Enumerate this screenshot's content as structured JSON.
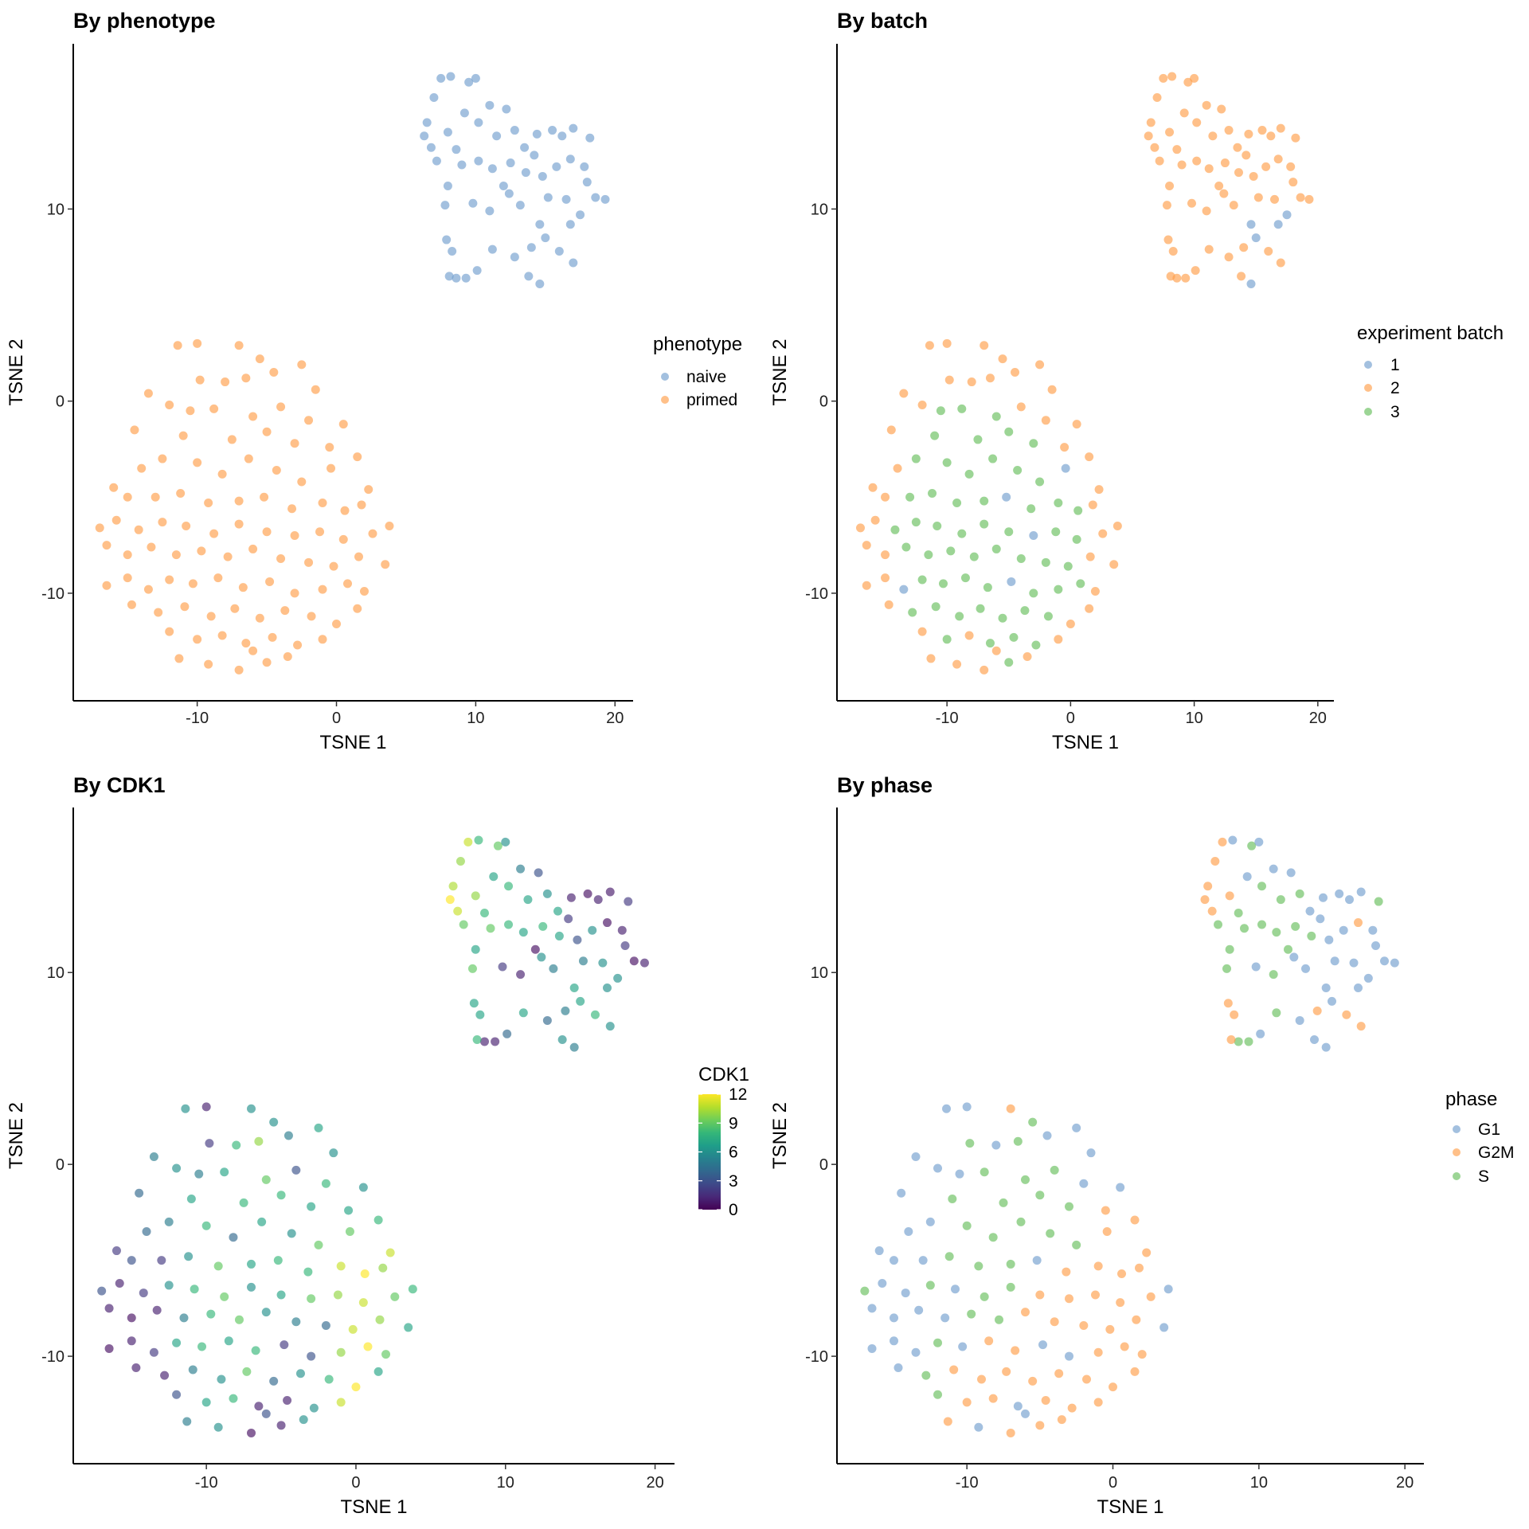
{
  "chart_data": [
    {
      "type": "scatter",
      "title": "By phenotype",
      "xlabel": "TSNE 1",
      "ylabel": "TSNE 2",
      "color_by": "phenotype",
      "legend": {
        "title": "phenotype",
        "position": "right",
        "items": [
          {
            "label": "naive",
            "color": "#729ECE"
          },
          {
            "label": "primed",
            "color": "#FF9E4A"
          }
        ]
      }
    },
    {
      "type": "scatter",
      "title": "By batch",
      "xlabel": "TSNE 1",
      "ylabel": "TSNE 2",
      "color_by": "batch",
      "legend": {
        "title": "experiment batch",
        "position": "right",
        "items": [
          {
            "label": "1",
            "color": "#729ECE"
          },
          {
            "label": "2",
            "color": "#FF9E4A"
          },
          {
            "label": "3",
            "color": "#67BF5C"
          }
        ]
      }
    },
    {
      "type": "scatter",
      "title": "By CDK1",
      "xlabel": "TSNE 1",
      "ylabel": "TSNE 2",
      "color_by": "cdk1",
      "legend": {
        "title": "CDK1",
        "position": "right",
        "colorscale": "viridis",
        "range": [
          0,
          12
        ],
        "ticks": [
          "12",
          "9",
          "6",
          "3",
          "0"
        ]
      }
    },
    {
      "type": "scatter",
      "title": "By phase",
      "xlabel": "TSNE 1",
      "ylabel": "TSNE 2",
      "color_by": "phase",
      "legend": {
        "title": "phase",
        "position": "right",
        "items": [
          {
            "label": "G1",
            "color": "#729ECE"
          },
          {
            "label": "G2M",
            "color": "#FF9E4A"
          },
          {
            "label": "S",
            "color": "#67BF5C"
          }
        ]
      }
    }
  ],
  "axes": {
    "xlim": [
      -18.9,
      21.3
    ],
    "ylim": [
      -15.6,
      18.6
    ],
    "xticks": [
      -10,
      0,
      10,
      20
    ],
    "yticks": [
      -10,
      0,
      10
    ],
    "grid": false
  },
  "point_fields": [
    "tsne1",
    "tsne2",
    "batch",
    "cdk1",
    "phase",
    "phenotype"
  ],
  "points": [
    [
      6.5,
      14.5,
      2,
      10.5,
      "G2M",
      "naive"
    ],
    [
      7.0,
      15.8,
      2,
      10,
      "G2M",
      "naive"
    ],
    [
      7.5,
      16.8,
      2,
      11,
      "G2M",
      "naive"
    ],
    [
      8.2,
      16.9,
      2,
      8,
      "G1",
      "naive"
    ],
    [
      9.5,
      16.6,
      2,
      9,
      "S",
      "naive"
    ],
    [
      10,
      16.8,
      2,
      6,
      "G1",
      "naive"
    ],
    [
      6.8,
      13.2,
      2,
      11,
      "G2M",
      "naive"
    ],
    [
      7.2,
      12.5,
      2,
      9,
      "S",
      "naive"
    ],
    [
      6.3,
      13.8,
      2,
      12,
      "G2M",
      "naive"
    ],
    [
      8,
      14,
      2,
      10,
      "G2M",
      "naive"
    ],
    [
      8.6,
      13.1,
      2,
      8,
      "S",
      "naive"
    ],
    [
      9.2,
      15,
      2,
      7,
      "G1",
      "naive"
    ],
    [
      10.2,
      14.5,
      2,
      8,
      "S",
      "naive"
    ],
    [
      11,
      15.4,
      2,
      5,
      "G1",
      "naive"
    ],
    [
      11.5,
      13.8,
      2,
      7,
      "S",
      "naive"
    ],
    [
      12.2,
      15.2,
      2,
      3,
      "G1",
      "naive"
    ],
    [
      12.8,
      14.1,
      2,
      6,
      "S",
      "naive"
    ],
    [
      13.5,
      13.2,
      2,
      7,
      "G1",
      "naive"
    ],
    [
      14.4,
      13.9,
      2,
      1,
      "G1",
      "naive"
    ],
    [
      15.5,
      14.1,
      2,
      0.5,
      "G1",
      "naive"
    ],
    [
      16.2,
      13.8,
      2,
      1,
      "G1",
      "naive"
    ],
    [
      17,
      14.2,
      2,
      0.8,
      "G1",
      "naive"
    ],
    [
      18.2,
      13.7,
      2,
      2,
      "S",
      "naive"
    ],
    [
      17.8,
      12.2,
      2,
      1,
      "G1",
      "naive"
    ],
    [
      16.8,
      12.6,
      2,
      0.5,
      "G2M",
      "naive"
    ],
    [
      15.8,
      12.2,
      2,
      6,
      "G1",
      "naive"
    ],
    [
      14.8,
      11.7,
      2,
      3,
      "G1",
      "naive"
    ],
    [
      13.6,
      11.9,
      2,
      7,
      "S",
      "naive"
    ],
    [
      12.5,
      12.4,
      2,
      8,
      "S",
      "naive"
    ],
    [
      11.2,
      12.1,
      2,
      7,
      "S",
      "naive"
    ],
    [
      10.2,
      12.5,
      2,
      8,
      "S",
      "naive"
    ],
    [
      9,
      12.3,
      2,
      9,
      "S",
      "naive"
    ],
    [
      8,
      11.2,
      2,
      7,
      "S",
      "naive"
    ],
    [
      7.8,
      10.2,
      2,
      9,
      "S",
      "naive"
    ],
    [
      9.8,
      10.3,
      2,
      2,
      "G1",
      "naive"
    ],
    [
      11,
      9.9,
      2,
      1,
      "S",
      "naive"
    ],
    [
      12.4,
      10.8,
      2,
      6,
      "G1",
      "naive"
    ],
    [
      13.2,
      10.2,
      2,
      5,
      "G1",
      "naive"
    ],
    [
      14.6,
      9.2,
      1,
      7,
      "G1",
      "naive"
    ],
    [
      15.2,
      10.6,
      2,
      5,
      "G1",
      "naive"
    ],
    [
      16.5,
      10.5,
      2,
      6,
      "G1",
      "naive"
    ],
    [
      17.5,
      9.7,
      1,
      6,
      "G1",
      "naive"
    ],
    [
      18.6,
      10.6,
      2,
      0.5,
      "G1",
      "naive"
    ],
    [
      19.3,
      10.5,
      2,
      1,
      "G1",
      "naive"
    ],
    [
      18,
      11.4,
      2,
      2,
      "G1",
      "naive"
    ],
    [
      15,
      8.5,
      1,
      7,
      "G1",
      "naive"
    ],
    [
      14,
      8,
      2,
      5,
      "G2M",
      "naive"
    ],
    [
      16,
      7.8,
      2,
      8,
      "G2M",
      "naive"
    ],
    [
      17,
      7.2,
      2,
      6,
      "G2M",
      "naive"
    ],
    [
      13.8,
      6.5,
      2,
      6,
      "G1",
      "naive"
    ],
    [
      14.6,
      6.1,
      1,
      5,
      "G1",
      "naive"
    ],
    [
      12.8,
      7.5,
      2,
      4,
      "G1",
      "naive"
    ],
    [
      11.2,
      7.9,
      2,
      7,
      "S",
      "naive"
    ],
    [
      10.1,
      6.8,
      2,
      4,
      "G1",
      "naive"
    ],
    [
      9.3,
      6.4,
      2,
      1,
      "S",
      "naive"
    ],
    [
      8.6,
      6.4,
      2,
      1,
      "S",
      "naive"
    ],
    [
      8.1,
      6.5,
      2,
      8,
      "G2M",
      "naive"
    ],
    [
      8.3,
      7.8,
      2,
      7,
      "G2M",
      "naive"
    ],
    [
      7.9,
      8.4,
      2,
      7,
      "G2M",
      "naive"
    ],
    [
      16.8,
      9.2,
      1,
      6,
      "G1",
      "naive"
    ],
    [
      14.2,
      12.8,
      2,
      2,
      "G1",
      "naive"
    ],
    [
      12,
      11.2,
      2,
      0.5,
      "S",
      "naive"
    ],
    [
      -11.4,
      2.9,
      2,
      6,
      "G1",
      "primed"
    ],
    [
      -10,
      3,
      2,
      1,
      "G1",
      "primed"
    ],
    [
      -7,
      2.9,
      2,
      6,
      "G2M",
      "primed"
    ],
    [
      -5.5,
      2.2,
      2,
      6,
      "S",
      "primed"
    ],
    [
      -4.5,
      1.5,
      2,
      5,
      "G1",
      "primed"
    ],
    [
      -2.5,
      1.9,
      2,
      7,
      "G1",
      "primed"
    ],
    [
      -13.5,
      0.4,
      2,
      5,
      "G1",
      "primed"
    ],
    [
      -9.8,
      1.1,
      2,
      2,
      "S",
      "primed"
    ],
    [
      -8,
      1,
      2,
      8,
      "G1",
      "primed"
    ],
    [
      -6.5,
      1.2,
      2,
      10,
      "S",
      "primed"
    ],
    [
      -1.5,
      0.6,
      2,
      6,
      "G1",
      "primed"
    ],
    [
      -12,
      -0.2,
      2,
      6,
      "G1",
      "primed"
    ],
    [
      -10.5,
      -0.5,
      3,
      5,
      "G1",
      "primed"
    ],
    [
      -8.8,
      -0.4,
      3,
      7,
      "S",
      "primed"
    ],
    [
      -6,
      -0.8,
      3,
      9,
      "S",
      "primed"
    ],
    [
      -4,
      -0.3,
      2,
      3,
      "S",
      "primed"
    ],
    [
      -2,
      -1,
      2,
      8,
      "G1",
      "primed"
    ],
    [
      0.5,
      -1.2,
      2,
      6,
      "G1",
      "primed"
    ],
    [
      -14.5,
      -1.5,
      2,
      4,
      "G1",
      "primed"
    ],
    [
      -11,
      -1.8,
      3,
      7,
      "S",
      "primed"
    ],
    [
      -7.5,
      -2,
      3,
      8,
      "S",
      "primed"
    ],
    [
      -5,
      -1.6,
      3,
      8,
      "S",
      "primed"
    ],
    [
      -3,
      -2.2,
      3,
      7,
      "S",
      "primed"
    ],
    [
      -0.5,
      -2.4,
      2,
      7,
      "G2M",
      "primed"
    ],
    [
      1.5,
      -2.9,
      2,
      8,
      "G2M",
      "primed"
    ],
    [
      -16,
      -4.5,
      2,
      2,
      "G1",
      "primed"
    ],
    [
      -14,
      -3.5,
      2,
      4,
      "G1",
      "primed"
    ],
    [
      -12.5,
      -3,
      3,
      5,
      "G1",
      "primed"
    ],
    [
      -10,
      -3.2,
      3,
      8,
      "S",
      "primed"
    ],
    [
      -8.2,
      -3.8,
      3,
      4,
      "S",
      "primed"
    ],
    [
      -6.3,
      -3,
      3,
      7,
      "S",
      "primed"
    ],
    [
      -4.3,
      -3.6,
      3,
      6,
      "S",
      "primed"
    ],
    [
      -2.5,
      -4.2,
      3,
      9,
      "S",
      "primed"
    ],
    [
      -0.4,
      -3.5,
      1,
      9,
      "G2M",
      "primed"
    ],
    [
      2.3,
      -4.6,
      2,
      11,
      "G2M",
      "primed"
    ],
    [
      -15,
      -5,
      2,
      3,
      "G1",
      "primed"
    ],
    [
      -13,
      -5,
      3,
      2,
      "G1",
      "primed"
    ],
    [
      -11.2,
      -4.8,
      3,
      6,
      "S",
      "primed"
    ],
    [
      -9.2,
      -5.3,
      3,
      9,
      "S",
      "primed"
    ],
    [
      -7,
      -5.2,
      3,
      7,
      "S",
      "primed"
    ],
    [
      -5.2,
      -5,
      1,
      8,
      "G1",
      "primed"
    ],
    [
      -3.2,
      -5.6,
      3,
      8,
      "G2M",
      "primed"
    ],
    [
      -1,
      -5.3,
      3,
      11,
      "G2M",
      "primed"
    ],
    [
      0.6,
      -5.7,
      3,
      12,
      "G2M",
      "primed"
    ],
    [
      1.8,
      -5.4,
      2,
      10,
      "G2M",
      "primed"
    ],
    [
      -17,
      -6.6,
      2,
      3,
      "S",
      "primed"
    ],
    [
      -15.8,
      -6.2,
      2,
      1,
      "G1",
      "primed"
    ],
    [
      -14.2,
      -6.7,
      3,
      2,
      "G1",
      "primed"
    ],
    [
      -12.5,
      -6.3,
      3,
      6,
      "S",
      "primed"
    ],
    [
      -10.8,
      -6.5,
      3,
      8,
      "G1",
      "primed"
    ],
    [
      -8.8,
      -6.9,
      3,
      9,
      "S",
      "primed"
    ],
    [
      -7,
      -6.4,
      3,
      6,
      "S",
      "primed"
    ],
    [
      -5,
      -6.8,
      3,
      7,
      "G2M",
      "primed"
    ],
    [
      -3,
      -7,
      1,
      9,
      "G2M",
      "primed"
    ],
    [
      -1.2,
      -6.8,
      3,
      10,
      "G2M",
      "primed"
    ],
    [
      0.5,
      -7.2,
      3,
      11,
      "G2M",
      "primed"
    ],
    [
      2.6,
      -6.9,
      2,
      9,
      "G2M",
      "primed"
    ],
    [
      3.8,
      -6.5,
      2,
      8,
      "G1",
      "primed"
    ],
    [
      -16.5,
      -7.5,
      2,
      1,
      "G1",
      "primed"
    ],
    [
      -15,
      -8,
      2,
      0.5,
      "G1",
      "primed"
    ],
    [
      -13.3,
      -7.6,
      3,
      1,
      "G1",
      "primed"
    ],
    [
      -11.5,
      -8,
      3,
      5,
      "G1",
      "primed"
    ],
    [
      -9.7,
      -7.8,
      3,
      8,
      "S",
      "primed"
    ],
    [
      -7.8,
      -8.1,
      3,
      9,
      "S",
      "primed"
    ],
    [
      -6,
      -7.7,
      3,
      6,
      "G2M",
      "primed"
    ],
    [
      -4,
      -8.2,
      3,
      5,
      "G2M",
      "primed"
    ],
    [
      -2,
      -8.4,
      3,
      4,
      "G2M",
      "primed"
    ],
    [
      -0.2,
      -8.6,
      3,
      11,
      "G2M",
      "primed"
    ],
    [
      1.6,
      -8.1,
      2,
      10,
      "G2M",
      "primed"
    ],
    [
      3.5,
      -8.5,
      2,
      7,
      "G1",
      "primed"
    ],
    [
      -16.5,
      -9.6,
      2,
      0.5,
      "G1",
      "primed"
    ],
    [
      -15,
      -9.2,
      2,
      1,
      "G1",
      "primed"
    ],
    [
      -13.5,
      -9.8,
      1,
      2,
      "G1",
      "primed"
    ],
    [
      -12,
      -9.3,
      3,
      7,
      "S",
      "primed"
    ],
    [
      -10.3,
      -9.5,
      3,
      8,
      "G1",
      "primed"
    ],
    [
      -8.5,
      -9.2,
      3,
      7,
      "G2M",
      "primed"
    ],
    [
      -6.7,
      -9.7,
      3,
      8,
      "G2M",
      "primed"
    ],
    [
      -4.8,
      -9.4,
      1,
      2,
      "G1",
      "primed"
    ],
    [
      -3,
      -10,
      3,
      3,
      "G1",
      "primed"
    ],
    [
      -1,
      -9.8,
      3,
      10,
      "G2M",
      "primed"
    ],
    [
      0.8,
      -9.5,
      3,
      12,
      "G2M",
      "primed"
    ],
    [
      2,
      -9.9,
      2,
      9,
      "G2M",
      "primed"
    ],
    [
      -14.7,
      -10.6,
      2,
      1,
      "G1",
      "primed"
    ],
    [
      -12.8,
      -11,
      3,
      1,
      "S",
      "primed"
    ],
    [
      -10.9,
      -10.7,
      3,
      5,
      "G2M",
      "primed"
    ],
    [
      -9,
      -11.2,
      3,
      6,
      "G2M",
      "primed"
    ],
    [
      -7.3,
      -10.8,
      3,
      9,
      "G2M",
      "primed"
    ],
    [
      -5.5,
      -11.3,
      3,
      4,
      "G2M",
      "primed"
    ],
    [
      -3.7,
      -10.9,
      3,
      6,
      "G2M",
      "primed"
    ],
    [
      -1.8,
      -11.2,
      3,
      8,
      "G2M",
      "primed"
    ],
    [
      0,
      -11.6,
      2,
      12,
      "G2M",
      "primed"
    ],
    [
      1.5,
      -10.8,
      2,
      7,
      "G2M",
      "primed"
    ],
    [
      -12,
      -12,
      2,
      3,
      "S",
      "primed"
    ],
    [
      -10,
      -12.4,
      3,
      7,
      "G2M",
      "primed"
    ],
    [
      -8.2,
      -12.2,
      2,
      8,
      "G2M",
      "primed"
    ],
    [
      -6.5,
      -12.6,
      3,
      1,
      "G1",
      "primed"
    ],
    [
      -4.6,
      -12.3,
      3,
      1,
      "G2M",
      "primed"
    ],
    [
      -2.8,
      -12.7,
      3,
      6,
      "G2M",
      "primed"
    ],
    [
      -1,
      -12.4,
      2,
      11,
      "G2M",
      "primed"
    ],
    [
      -11.3,
      -13.4,
      2,
      5,
      "G2M",
      "primed"
    ],
    [
      -9.2,
      -13.7,
      2,
      6,
      "G1",
      "primed"
    ],
    [
      -7,
      -14,
      2,
      0.5,
      "G2M",
      "primed"
    ],
    [
      -5,
      -13.6,
      3,
      1,
      "G2M",
      "primed"
    ],
    [
      -3.5,
      -13.3,
      2,
      6,
      "G2M",
      "primed"
    ],
    [
      -6,
      -13,
      2,
      3,
      "G1",
      "primed"
    ]
  ]
}
